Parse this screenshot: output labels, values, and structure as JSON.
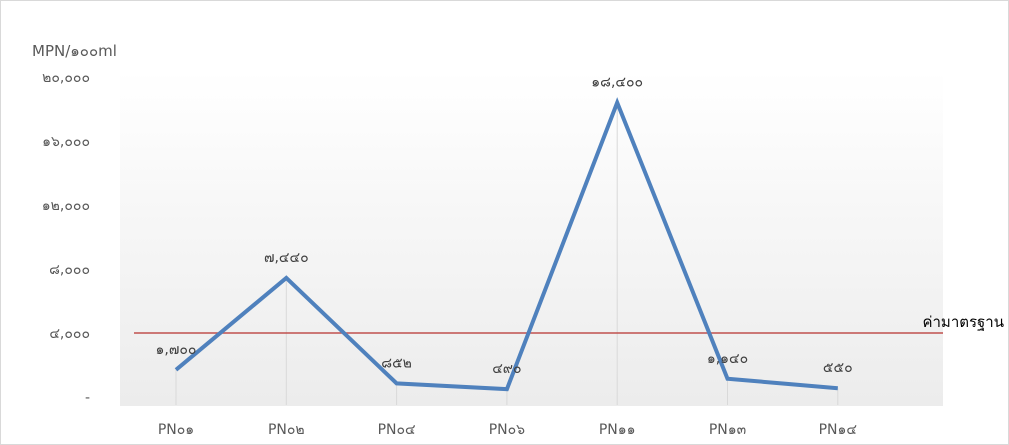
{
  "chart_data": {
    "type": "line",
    "ylabel": "MPN/๑๐๐ml",
    "ylim": [
      0,
      20000
    ],
    "ytick_values": [
      0,
      4000,
      8000,
      12000,
      16000,
      20000
    ],
    "ytick_labels": [
      "-",
      "๔,๐๐๐",
      "๘,๐๐๐",
      "๑๒,๐๐๐",
      "๑๖,๐๐๐",
      "๒๐,๐๐๐"
    ],
    "categories": [
      "PN๐๑",
      "PN๐๒",
      "PN๐๔",
      "PN๐๖",
      "PN๑๑",
      "PN๑๓",
      "PN๑๔"
    ],
    "series": [
      {
        "values": [
          1700,
          7440,
          852,
          490,
          18400,
          1140,
          550
        ],
        "data_labels": [
          "๑,๗๐๐",
          "๗,๔๔๐",
          "๘๕๒",
          "๔๙๐",
          "๑๘,๔๐๐",
          "๑,๑๔๐",
          "๕๕๐"
        ],
        "color": "#4f81bd"
      }
    ],
    "reference_line": {
      "label": "ค่ามาตรฐาน",
      "value": 4000,
      "color": "#c0504d"
    },
    "grid": "vertical drop lines",
    "legend": "none"
  }
}
